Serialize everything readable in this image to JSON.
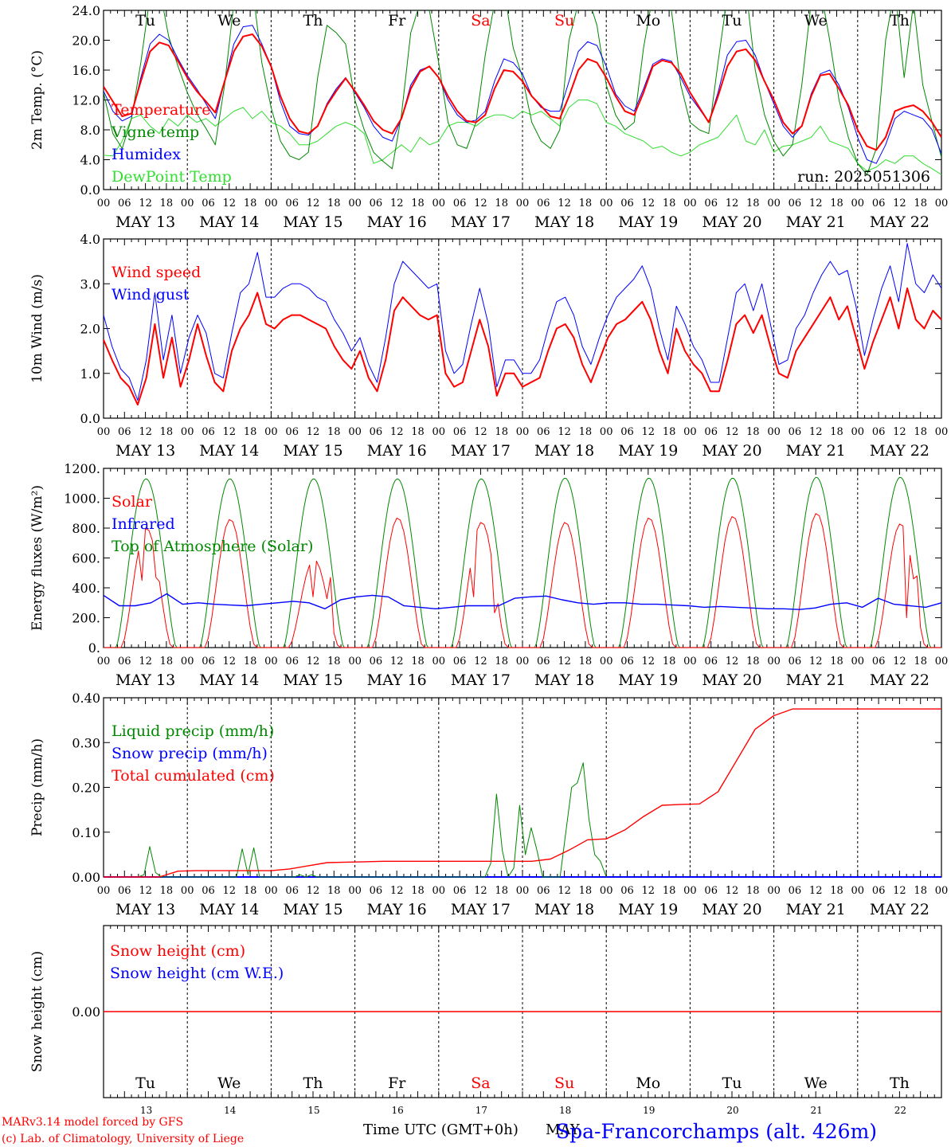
{
  "colors": {
    "red": "#ff0000",
    "green": "#008800",
    "blue": "#0000ff",
    "lightgreen": "#33dd33",
    "black": "#000000"
  },
  "day_labels": [
    "Tu",
    "We",
    "Th",
    "Fr",
    "Sa",
    "Su",
    "Mo",
    "Tu",
    "We",
    "Th"
  ],
  "day_label_colors": [
    "black",
    "black",
    "black",
    "black",
    "red",
    "red",
    "black",
    "black",
    "black",
    "black"
  ],
  "date_labels": [
    "MAY 13",
    "MAY 14",
    "MAY 15",
    "MAY 16",
    "MAY 17",
    "MAY 18",
    "MAY 19",
    "MAY 20",
    "MAY 21",
    "MAY 22"
  ],
  "hour_ticks": [
    "00",
    "06",
    "12",
    "18"
  ],
  "last_hour_tick": "00",
  "footer": {
    "model_line": "MARv3.14 model forced by GFS",
    "credit_line": "(c) Lab. of Climatology, University of Liege",
    "axis_title": "Time UTC (GMT+0h)",
    "month": "MAY",
    "station": "Spa-Francorchamps (alt. 426m)",
    "day_numbers": [
      "13",
      "14",
      "15",
      "16",
      "17",
      "18",
      "19",
      "20",
      "21",
      "22"
    ]
  },
  "chart_data": [
    {
      "type": "line",
      "ylabel": "2m Temp. (°C)",
      "ylim": [
        0,
        24
      ],
      "yticks": [
        "0.0",
        "4.0",
        "8.0",
        "12.0",
        "16.0",
        "20.0",
        "24.0"
      ],
      "annotation": "run: 2025051306",
      "grid": "dashed day separators",
      "series": [
        {
          "name": "Temperature",
          "color": "red",
          "values": [
            13.8,
            11.8,
            9.8,
            10.2,
            14.5,
            18.5,
            19.7,
            19.3,
            17.2,
            15.0,
            13.2,
            11.8,
            10.3,
            14.5,
            18.5,
            20.5,
            20.8,
            19.2,
            16.5,
            12.5,
            9.5,
            7.8,
            7.5,
            8.5,
            11.3,
            13.2,
            14.9,
            13.2,
            11.3,
            9.2,
            8.0,
            7.5,
            9.5,
            13.5,
            15.8,
            16.5,
            15.0,
            12.5,
            10.5,
            9.2,
            9.0,
            10.0,
            13.5,
            16.0,
            15.8,
            14.5,
            12.5,
            11.2,
            9.8,
            9.5,
            12.5,
            16.0,
            17.5,
            17.0,
            15.0,
            12.5,
            10.5,
            10.0,
            13.0,
            16.5,
            17.3,
            17.0,
            15.5,
            13.0,
            11.0,
            9.0,
            12.5,
            16.5,
            18.5,
            18.8,
            17.3,
            14.5,
            12.0,
            9.0,
            7.5,
            8.5,
            12.5,
            15.3,
            15.5,
            13.5,
            11.3,
            8.0,
            5.8,
            5.3,
            7.0,
            10.5,
            11.0,
            11.3,
            10.5,
            9.0,
            7.0
          ]
        },
        {
          "name": "Vigne temp",
          "color": "green",
          "values": [
            13.0,
            7.5,
            5.5,
            9.5,
            17.0,
            26.0,
            27.0,
            20.5,
            16.5,
            13.0,
            10.2,
            8.2,
            6.0,
            14.0,
            25.0,
            28.0,
            27.0,
            17.0,
            11.0,
            6.5,
            4.5,
            4.0,
            5.0,
            15.0,
            22.0,
            21.0,
            19.5,
            12.0,
            8.0,
            5.0,
            3.8,
            2.8,
            10.0,
            21.0,
            25.0,
            24.0,
            17.0,
            9.0,
            6.0,
            5.5,
            9.0,
            18.0,
            25.0,
            27.0,
            19.0,
            15.0,
            9.0,
            6.5,
            5.5,
            8.0,
            20.0,
            25.0,
            26.0,
            22.0,
            14.0,
            10.0,
            8.0,
            9.0,
            19.0,
            26.0,
            27.0,
            24.0,
            14.0,
            9.0,
            8.0,
            7.5,
            17.0,
            26.0,
            28.0,
            27.0,
            16.0,
            10.0,
            6.5,
            4.5,
            6.0,
            14.0,
            25.0,
            27.0,
            20.0,
            12.0,
            7.0,
            3.5,
            2.0,
            5.5,
            20.0,
            27.0,
            15.0,
            25.0,
            14.0,
            9.0,
            4.3
          ]
        },
        {
          "name": "Humidex",
          "color": "blue",
          "values": [
            13.2,
            10.5,
            9.2,
            9.8,
            15.0,
            19.5,
            20.8,
            20.0,
            17.5,
            15.3,
            13.5,
            11.5,
            9.5,
            14.5,
            19.5,
            21.8,
            22.0,
            19.5,
            16.5,
            11.8,
            8.5,
            7.5,
            7.3,
            8.5,
            11.5,
            13.5,
            15.0,
            13.0,
            11.0,
            8.5,
            7.0,
            6.5,
            9.5,
            14.0,
            16.0,
            16.5,
            15.0,
            12.0,
            10.0,
            9.0,
            9.3,
            10.5,
            14.5,
            17.5,
            17.0,
            15.5,
            12.5,
            11.0,
            10.5,
            10.5,
            14.5,
            18.5,
            19.8,
            19.3,
            16.5,
            12.8,
            11.2,
            10.5,
            13.5,
            16.8,
            17.5,
            17.2,
            15.0,
            12.5,
            10.8,
            9.0,
            13.0,
            18.0,
            19.8,
            20.0,
            18.0,
            14.5,
            11.5,
            8.5,
            7.0,
            8.5,
            12.8,
            15.5,
            16.0,
            14.0,
            11.0,
            7.0,
            4.0,
            3.5,
            6.0,
            9.5,
            10.5,
            10.0,
            9.5,
            8.0,
            4.8
          ]
        },
        {
          "name": "DewPoint Temp",
          "color": "lightgreen",
          "values": [
            4.6,
            4.5,
            6.5,
            9.5,
            10.0,
            8.5,
            7.5,
            9.5,
            8.5,
            10.0,
            9.0,
            9.5,
            8.5,
            9.5,
            10.5,
            11.0,
            9.5,
            10.5,
            9.0,
            8.5,
            7.5,
            6.0,
            6.0,
            6.5,
            7.5,
            8.5,
            9.0,
            8.5,
            7.5,
            3.5,
            4.0,
            5.0,
            6.0,
            5.0,
            7.0,
            6.0,
            6.5,
            8.5,
            9.0,
            9.0,
            8.5,
            9.5,
            10.0,
            10.0,
            9.5,
            10.5,
            10.0,
            10.5,
            9.5,
            8.5,
            11.0,
            12.0,
            12.0,
            11.5,
            9.0,
            8.5,
            7.5,
            7.0,
            6.5,
            5.5,
            5.8,
            5.0,
            4.5,
            5.0,
            6.0,
            6.5,
            7.0,
            8.5,
            10.0,
            6.5,
            6.0,
            8.0,
            5.0,
            5.8,
            6.0,
            6.5,
            7.0,
            8.5,
            6.5,
            6.0,
            5.5,
            3.5,
            2.5,
            3.0,
            4.0,
            3.5,
            4.5,
            4.5,
            3.5,
            2.8,
            2.0
          ]
        }
      ]
    },
    {
      "type": "line",
      "ylabel": "10m Wind (m/s)",
      "ylim": [
        0,
        4
      ],
      "yticks": [
        "0.0",
        "1.0",
        "2.0",
        "3.0",
        "4.0"
      ],
      "grid": "dashed day separators",
      "series": [
        {
          "name": "Wind speed",
          "color": "red",
          "values": [
            1.75,
            1.3,
            0.9,
            0.7,
            0.3,
            0.9,
            2.1,
            0.9,
            1.8,
            0.7,
            1.3,
            2.1,
            1.4,
            0.8,
            0.6,
            1.5,
            2.0,
            2.3,
            2.8,
            2.1,
            2.0,
            2.2,
            2.3,
            2.3,
            2.2,
            2.1,
            2.0,
            1.6,
            1.3,
            1.1,
            1.5,
            0.9,
            0.6,
            1.3,
            2.4,
            2.7,
            2.5,
            2.3,
            2.2,
            2.3,
            1.0,
            0.7,
            0.8,
            1.5,
            2.2,
            1.6,
            0.5,
            1.0,
            1.0,
            0.7,
            0.8,
            0.9,
            1.5,
            2.0,
            2.1,
            1.8,
            1.2,
            0.8,
            1.3,
            1.8,
            2.1,
            2.2,
            2.4,
            2.6,
            2.2,
            1.5,
            1.0,
            2.0,
            1.5,
            1.2,
            1.0,
            0.6,
            0.6,
            1.3,
            2.1,
            2.3,
            1.9,
            2.3,
            1.6,
            1.0,
            0.9,
            1.5,
            1.8,
            2.1,
            2.4,
            2.7,
            2.2,
            2.5,
            1.8,
            1.1,
            1.7,
            2.2,
            2.7,
            2.0,
            2.9,
            2.2,
            2.0,
            2.4,
            2.2
          ]
        },
        {
          "name": "Wind gust",
          "color": "blue",
          "values": [
            2.3,
            1.6,
            1.1,
            0.9,
            0.4,
            1.3,
            2.8,
            1.3,
            2.3,
            1.0,
            1.8,
            2.3,
            1.9,
            1.0,
            0.9,
            1.9,
            2.8,
            3.0,
            3.7,
            2.7,
            2.7,
            2.9,
            3.0,
            3.0,
            2.9,
            2.7,
            2.6,
            2.2,
            1.9,
            1.5,
            1.8,
            1.2,
            0.8,
            1.8,
            3.0,
            3.5,
            3.3,
            3.1,
            2.9,
            3.0,
            1.5,
            1.0,
            1.2,
            2.1,
            2.9,
            2.1,
            0.7,
            1.3,
            1.3,
            1.0,
            1.0,
            1.3,
            2.0,
            2.6,
            2.7,
            2.3,
            1.6,
            1.2,
            1.8,
            2.3,
            2.7,
            2.9,
            3.1,
            3.4,
            2.9,
            2.0,
            1.3,
            2.5,
            2.1,
            1.6,
            1.3,
            0.8,
            0.8,
            1.8,
            2.8,
            3.0,
            2.4,
            3.0,
            2.1,
            1.2,
            1.3,
            2.0,
            2.3,
            2.8,
            3.2,
            3.5,
            3.2,
            3.3,
            2.5,
            1.4,
            2.2,
            2.9,
            3.4,
            2.6,
            3.9,
            3.0,
            2.8,
            3.2,
            2.9
          ]
        }
      ]
    },
    {
      "type": "line",
      "ylabel": "Energy fluxes (W/m²)",
      "ylim": [
        0,
        1200
      ],
      "yticks": [
        "0.",
        "200.",
        "400.",
        "600.",
        "800.",
        "1000.",
        "1200."
      ],
      "grid": "dashed day separators",
      "series": [
        {
          "name": "Solar",
          "color": "red",
          "peaks": [
            800,
            860,
            590,
            870,
            840,
            840,
            870,
            880,
            900,
            830
          ]
        },
        {
          "name": "Infrared",
          "color": "blue",
          "values": [
            350,
            280,
            280,
            300,
            360,
            290,
            300,
            290,
            285,
            280,
            290,
            300,
            310,
            300,
            260,
            320,
            340,
            350,
            340,
            280,
            270,
            260,
            270,
            280,
            280,
            280,
            330,
            340,
            345,
            320,
            300,
            290,
            300,
            300,
            290,
            290,
            285,
            280,
            270,
            275,
            270,
            265,
            260,
            260,
            255,
            265,
            290,
            300,
            270,
            330,
            290,
            280,
            270,
            300
          ]
        },
        {
          "name": "Top of Atmosphere (Solar)",
          "color": "green",
          "peaks": [
            1130,
            1130,
            1130,
            1130,
            1130,
            1135,
            1135,
            1135,
            1140,
            1140
          ]
        }
      ]
    },
    {
      "type": "line",
      "ylabel": "Precip (mm/h)",
      "ylim": [
        0,
        0.4
      ],
      "yticks": [
        "0.00",
        "0.10",
        "0.20",
        "0.30",
        "0.40"
      ],
      "grid": "dashed day separators",
      "series": [
        {
          "name": "Liquid precip (mm/h)",
          "color": "green",
          "values": [
            0,
            0,
            0,
            0,
            0,
            0,
            0,
            0.005,
            0.068,
            0.01,
            0,
            0,
            0,
            0,
            0,
            0,
            0,
            0,
            0,
            0,
            0,
            0,
            0,
            0,
            0.063,
            0.005,
            0.065,
            0,
            0,
            0,
            0,
            0,
            0,
            0,
            0.005,
            0,
            0.005,
            0,
            0,
            0,
            0,
            0,
            0,
            0,
            0,
            0,
            0,
            0,
            0,
            0,
            0,
            0,
            0,
            0,
            0,
            0,
            0,
            0,
            0,
            0,
            0,
            0,
            0,
            0,
            0,
            0,
            0,
            0.03,
            0.185,
            0.06,
            0,
            0.02,
            0.16,
            0.05,
            0.11,
            0.06,
            0,
            0,
            0,
            0,
            0.1,
            0.2,
            0.21,
            0.255,
            0.13,
            0.05,
            0.035,
            0
          ]
        },
        {
          "name": "Snow precip (mm/h)",
          "color": "blue",
          "values": [
            0,
            0
          ]
        },
        {
          "name": "Total cumulated (cm)",
          "color": "red",
          "values": [
            0,
            0,
            0,
            0,
            0.013,
            0.014,
            0.014,
            0.014,
            0.014,
            0.014,
            0.018,
            0.025,
            0.032,
            0.033,
            0.034,
            0.035,
            0.035,
            0.035,
            0.035,
            0.035,
            0.035,
            0.035,
            0.035,
            0.035,
            0.04,
            0.06,
            0.083,
            0.085,
            0.105,
            0.135,
            0.16,
            0.162,
            0.163,
            0.19,
            0.26,
            0.33,
            0.36,
            0.375,
            0.375,
            0.375,
            0.375,
            0.375,
            0.375,
            0.375,
            0.375,
            0.375
          ]
        }
      ]
    },
    {
      "type": "line",
      "ylabel": "Snow height (cm)",
      "yticks": [
        "0.00"
      ],
      "grid": "dashed day separators",
      "series": [
        {
          "name": "Snow height (cm)",
          "color": "red",
          "values": [
            0,
            0
          ]
        },
        {
          "name": "Snow height (cm W.E.)",
          "color": "blue",
          "values": [
            0,
            0
          ]
        }
      ]
    }
  ]
}
